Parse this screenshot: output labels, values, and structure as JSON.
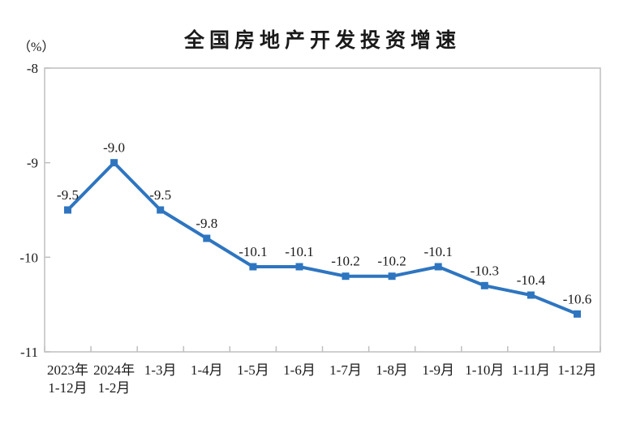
{
  "page": {
    "background_color": "#ffffff",
    "text_color": "#1a1a1a"
  },
  "header": {
    "title": "全国房地产开发投资增速",
    "unit_label": "（%）"
  },
  "chart_data": {
    "type": "line",
    "title": "全国房地产开发投资增速",
    "ylabel": "（%）",
    "xlabel": "",
    "categories": [
      [
        "2023年",
        "1-12月"
      ],
      [
        "2024年",
        "1-2月"
      ],
      [
        "1-3月"
      ],
      [
        "1-4月"
      ],
      [
        "1-5月"
      ],
      [
        "1-6月"
      ],
      [
        "1-7月"
      ],
      [
        "1-8月"
      ],
      [
        "1-9月"
      ],
      [
        "1-10月"
      ],
      [
        "1-11月"
      ],
      [
        "1-12月"
      ]
    ],
    "values": [
      -9.5,
      -9.0,
      -9.5,
      -9.8,
      -10.1,
      -10.1,
      -10.2,
      -10.2,
      -10.1,
      -10.3,
      -10.4,
      -10.6
    ],
    "data_labels": [
      "-9.5",
      "-9.0",
      "-9.5",
      "-9.8",
      "-10.1",
      "-10.1",
      "-10.2",
      "-10.2",
      "-10.1",
      "-10.3",
      "-10.4",
      "-10.6"
    ],
    "ylim": [
      -11,
      -8
    ],
    "yticks": [
      -8,
      -9,
      -10,
      -11
    ],
    "grid": false,
    "legend": "none",
    "line_color": "#2E75C0",
    "marker": "square",
    "marker_size": 9,
    "line_width": 4,
    "axis_color": "#BFBFBF",
    "label_color": "#1a1a1a"
  }
}
